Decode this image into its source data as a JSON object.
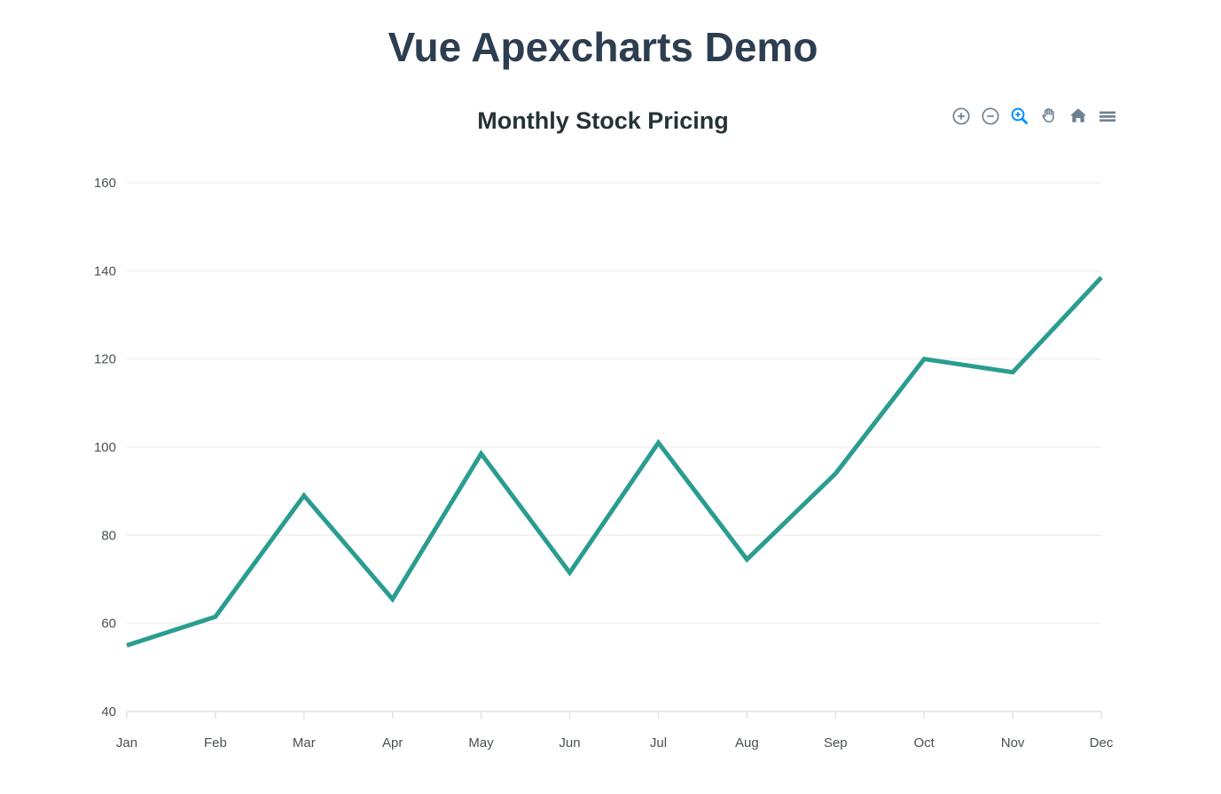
{
  "page": {
    "title": "Vue Apexcharts Demo"
  },
  "chart": {
    "title": "Monthly Stock Pricing",
    "toolbar": {
      "icons": [
        "zoom-in",
        "zoom-out",
        "selection-zoom",
        "panning",
        "reset-zoom",
        "menu"
      ],
      "active_icon": "selection-zoom"
    }
  },
  "chart_data": {
    "type": "line",
    "title": "Monthly Stock Pricing",
    "categories": [
      "Jan",
      "Feb",
      "Mar",
      "Apr",
      "May",
      "Jun",
      "Jul",
      "Aug",
      "Sep",
      "Oct",
      "Nov",
      "Dec"
    ],
    "values": [
      55,
      61.5,
      89,
      65.5,
      98.5,
      71.5,
      101,
      74.5,
      94,
      120,
      117,
      138.5
    ],
    "xlabel": "",
    "ylabel": "",
    "ylim": [
      40,
      160
    ],
    "yticks": [
      40,
      60,
      80,
      100,
      120,
      140,
      160
    ],
    "grid": true,
    "legend": false,
    "line_width": 5
  },
  "colors": {
    "page_title": "#2c3e50",
    "chart_title": "#263238",
    "axis_label": "#4a5056",
    "grid_line": "#e9e9e9",
    "axis_border": "#e0e0e0",
    "toolbar_icon": "#6e8192",
    "toolbar_active": "#008ffb",
    "series_line": "#2a9d90"
  }
}
